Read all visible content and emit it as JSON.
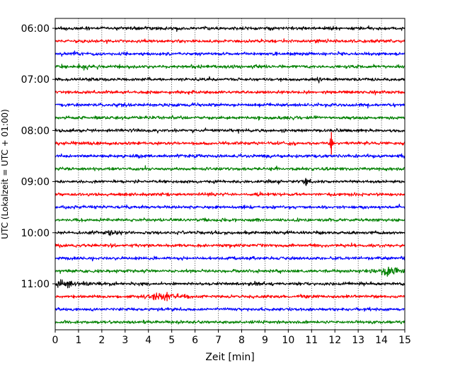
{
  "chart_data": {
    "type": "line",
    "subtype": "helicorder",
    "title": "",
    "xlabel": "Zeit  [min]",
    "ylabel": "UTC (Lokalzeit = UTC + 01:00)",
    "xlim": [
      0,
      15
    ],
    "x_ticks": [
      0,
      1,
      2,
      3,
      4,
      5,
      6,
      7,
      8,
      9,
      10,
      11,
      12,
      13,
      14,
      15
    ],
    "x_grid": true,
    "trace_minutes": 15,
    "traces_per_hour": 4,
    "start_time": "06:00",
    "trace_count": 24,
    "y_ticks": [
      "06:00",
      "07:00",
      "08:00",
      "09:00",
      "10:00",
      "11:00"
    ],
    "colors": [
      "#000000",
      "#ff0000",
      "#0000ff",
      "#008000"
    ],
    "events": [
      {
        "trace": 3,
        "minute": 1.0,
        "amplitude": 1.5,
        "duration": 0.8
      },
      {
        "trace": 6,
        "minute": 2.9,
        "amplitude": 1.4,
        "duration": 0.6
      },
      {
        "trace": 8,
        "minute": 3.3,
        "amplitude": 1.3,
        "duration": 0.4
      },
      {
        "trace": 9,
        "minute": 11.85,
        "amplitude": 8.0,
        "duration": 0.08
      },
      {
        "trace": 10,
        "minute": 3.6,
        "amplitude": 1.5,
        "duration": 0.4
      },
      {
        "trace": 12,
        "minute": 10.75,
        "amplitude": 2.5,
        "duration": 0.2
      },
      {
        "trace": 12,
        "minute": 9.3,
        "amplitude": 1.4,
        "duration": 0.3
      },
      {
        "trace": 16,
        "minute": 2.4,
        "amplitude": 1.8,
        "duration": 0.6
      },
      {
        "trace": 19,
        "minute": 14.3,
        "amplitude": 3.0,
        "duration": 0.8
      },
      {
        "trace": 20,
        "minute": 0.3,
        "amplitude": 2.2,
        "duration": 1.5
      },
      {
        "trace": 20,
        "minute": 8.6,
        "amplitude": 1.6,
        "duration": 0.3
      },
      {
        "trace": 21,
        "minute": 4.1,
        "amplitude": 2.2,
        "duration": 0.5
      },
      {
        "trace": 21,
        "minute": 4.8,
        "amplitude": 3.2,
        "duration": 0.7
      }
    ]
  }
}
